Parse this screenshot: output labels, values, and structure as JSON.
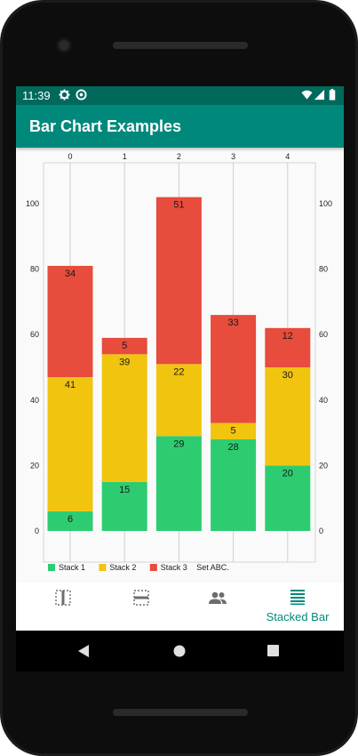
{
  "status_bar": {
    "time": "11:39"
  },
  "app_bar": {
    "title": "Bar Chart Examples"
  },
  "bottom_nav": {
    "items": [
      {
        "icon": "vertical-bars-icon",
        "label": ""
      },
      {
        "icon": "horizontal-bars-icon",
        "label": ""
      },
      {
        "icon": "people-icon",
        "label": ""
      },
      {
        "icon": "stacked-bar-icon",
        "label": "Stacked Bar",
        "active": true
      }
    ]
  },
  "colors": {
    "accent": "#00897b",
    "statusbar": "#00695c",
    "stack1": "#2ecc71",
    "stack2": "#f1c40f",
    "stack3": "#e74c3c"
  },
  "chart_data": {
    "type": "bar",
    "stacked": true,
    "categories": [
      "0",
      "1",
      "2",
      "3",
      "4"
    ],
    "series": [
      {
        "name": "Stack 1",
        "values": [
          6,
          15,
          29,
          28,
          20
        ]
      },
      {
        "name": "Stack 2",
        "values": [
          41,
          39,
          22,
          5,
          30
        ]
      },
      {
        "name": "Stack 3",
        "values": [
          34,
          5,
          51,
          33,
          12
        ]
      }
    ],
    "legend_title": "Set ABC.",
    "legend_position": "bottom-left",
    "ylim": [
      0,
      100
    ],
    "yticks": [
      0,
      20,
      40,
      60,
      80,
      100
    ],
    "y_axis_both_sides": true,
    "x_axis_position": "top",
    "grid": true
  }
}
